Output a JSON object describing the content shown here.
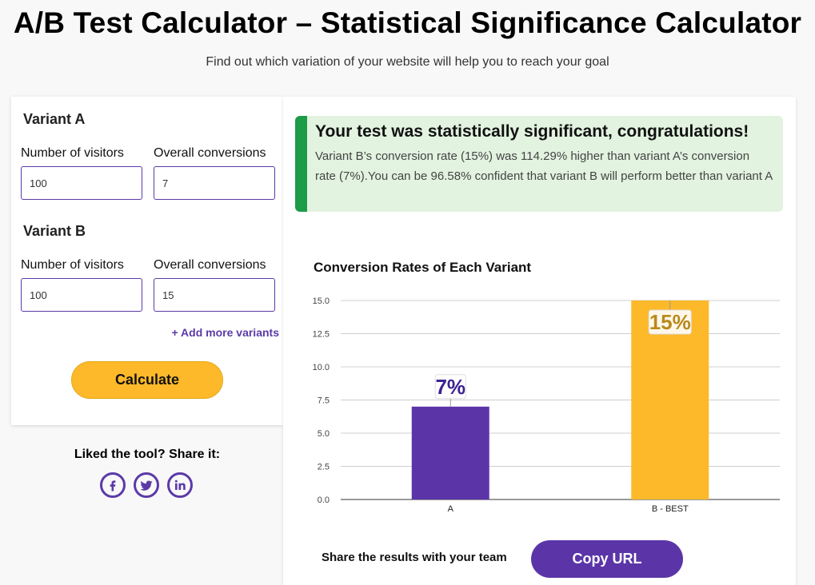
{
  "header": {
    "title": "A/B Test Calculator – Statistical Significance Calculator",
    "subtitle": "Find out which variation of your website will help you to reach your goal"
  },
  "form": {
    "variant_a": {
      "title": "Variant A",
      "visitors_label": "Number of visitors",
      "conversions_label": "Overall conversions",
      "visitors_value": "100",
      "conversions_value": "7"
    },
    "variant_b": {
      "title": "Variant B",
      "visitors_label": "Number of visitors",
      "conversions_label": "Overall conversions",
      "visitors_value": "100",
      "conversions_value": "15"
    },
    "add_variants_label": "+ Add more variants",
    "calculate_label": "Calculate"
  },
  "share": {
    "title": "Liked the tool? Share it:",
    "icons": [
      "facebook-icon",
      "twitter-icon",
      "linkedin-icon"
    ]
  },
  "result": {
    "title": "Your test was statistically significant, congratulations!",
    "text": "Variant B’s conversion rate (15%) was 114.29% higher than variant A’s conversion rate (7%).You can be 96.58% confident that variant B will perform better than variant A"
  },
  "chart_data": {
    "type": "bar",
    "title": "Conversion Rates of Each Variant",
    "categories": [
      "A",
      "B - BEST"
    ],
    "values": [
      7,
      15
    ],
    "data_labels": [
      "7%",
      "15%"
    ],
    "bar_colors": [
      "#5b35a8",
      "#fdb92a"
    ],
    "label_colors": [
      "#3d2390",
      "#b88a1d"
    ],
    "ylim": [
      0,
      15
    ],
    "yticks": [
      "0.0",
      "2.5",
      "5.0",
      "7.5",
      "10.0",
      "12.5",
      "15.0"
    ],
    "grid": true,
    "xlabel": "",
    "ylabel": ""
  },
  "footer": {
    "share_results_label": "Share the results with your team",
    "copy_url_label": "Copy URL"
  },
  "colors": {
    "accent_purple": "#5b35a8",
    "accent_yellow": "#fdb92a",
    "success_green": "#1e9b47",
    "success_bg": "#e2f3e0"
  }
}
